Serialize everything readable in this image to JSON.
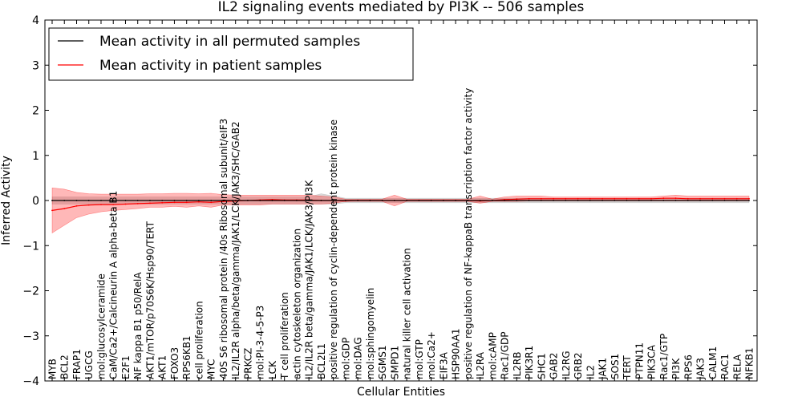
{
  "chart_data": {
    "type": "line",
    "title": "IL2 signaling events mediated by PI3K -- 506 samples",
    "xlabel": "Cellular Entities",
    "ylabel": "Inferred Activity",
    "ylim": [
      -4,
      4
    ],
    "yticks": [
      -4,
      -3,
      -2,
      -1,
      0,
      1,
      2,
      3,
      4
    ],
    "ytick_labels": [
      "−4",
      "−3",
      "−2",
      "−1",
      "0",
      "1",
      "2",
      "3",
      "4"
    ],
    "grid": false,
    "legend": {
      "position": "top-left",
      "entries": [
        {
          "label": "Mean activity in all permuted samples",
          "color": "#000000"
        },
        {
          "label": "Mean activity in patient samples",
          "color": "#ff0000"
        }
      ]
    },
    "categories": [
      "MYB",
      "BCL2",
      "FRAP1",
      "UGCG",
      "mol:glucosylceramide",
      "CaM/Ca2+/Calcineurin A alpha-beta B1",
      "E2F1",
      "NF kappa B1 p50/RelA",
      "AKT1/mTOR/p70S6K/Hsp90/TERT",
      "AKT1",
      "FOXO3",
      "RPS6KB1",
      "cell proliferation",
      "MYC",
      "40S S6 ribosomal protein /40s Ribosomal subunit/eIF3",
      "IL2/IL2R alpha/beta/gamma/JAK1/LCK/JAK3/SHC/GAB2",
      "PRKCZ",
      "mol:PI-3-4-5-P3",
      "LCK",
      "T cell proliferation",
      "actin cytoskeleton organization",
      "IL2/IL2R beta/gamma/JAK1/LCK/JAK3/PI3K",
      "BCL2L1",
      "positive regulation of cyclin-dependent protein kinase",
      "mol:GDP",
      "mol:DAG",
      "mol:sphingomyelin",
      "SGMS1",
      "SMPD1",
      "natural killer cell activation",
      "mol:GTP",
      "mol:Ca2+",
      "EIF3A",
      "HSP90AA1",
      "positive regulation of NF-kappaB transcription factor activity",
      "IL2RA",
      "mol:cAMP",
      "Rac1/GDP",
      "IL2RB",
      "PIK3R1",
      "SHC1",
      "GAB2",
      "IL2RG",
      "GRB2",
      "IL2",
      "JAK1",
      "SOS1",
      "TERT",
      "PTPN11",
      "PIK3CA",
      "Rac1/GTP",
      "PI3K",
      "RPS6",
      "JAK3",
      "CALM1",
      "RAC1",
      "RELA",
      "NFKB1"
    ],
    "series": [
      {
        "name": "Mean activity in all permuted samples",
        "color": "#000000",
        "values": [
          0,
          0,
          0,
          0,
          0,
          0,
          0,
          0,
          0,
          0,
          0,
          0,
          0,
          0,
          0,
          0,
          0,
          0,
          0,
          0,
          0,
          0,
          0,
          0,
          0,
          0,
          0,
          0,
          0,
          0,
          0,
          0,
          0,
          0,
          0,
          0,
          0,
          0,
          0,
          0,
          0,
          0,
          0,
          0,
          0,
          0,
          0,
          0,
          0,
          0,
          0,
          0,
          0,
          0,
          0,
          0,
          0,
          0
        ],
        "lower": [
          -0.08,
          -0.08,
          -0.08,
          -0.08,
          -0.08,
          -0.08,
          -0.08,
          -0.08,
          -0.08,
          -0.08,
          -0.08,
          -0.08,
          -0.08,
          -0.08,
          -0.08,
          -0.08,
          -0.08,
          -0.08,
          -0.08,
          -0.08,
          -0.08,
          -0.08,
          -0.08,
          -0.08,
          -0.05,
          -0.05,
          -0.05,
          -0.05,
          -0.05,
          -0.05,
          -0.05,
          -0.05,
          -0.05,
          -0.05,
          -0.05,
          -0.05,
          -0.05,
          -0.05,
          -0.05,
          -0.05,
          -0.05,
          -0.05,
          -0.05,
          -0.05,
          -0.05,
          -0.05,
          -0.05,
          -0.05,
          -0.05,
          -0.05,
          -0.05,
          -0.05,
          -0.05,
          -0.05,
          -0.05,
          -0.05,
          -0.05,
          -0.05
        ],
        "upper": [
          0.08,
          0.08,
          0.08,
          0.08,
          0.08,
          0.08,
          0.08,
          0.08,
          0.08,
          0.08,
          0.08,
          0.08,
          0.08,
          0.08,
          0.08,
          0.08,
          0.08,
          0.08,
          0.08,
          0.08,
          0.08,
          0.08,
          0.15,
          0.1,
          0.05,
          0.05,
          0.05,
          0.05,
          0.05,
          0.05,
          0.05,
          0.05,
          0.05,
          0.05,
          0.05,
          0.05,
          0.05,
          0.05,
          0.05,
          0.05,
          0.05,
          0.05,
          0.05,
          0.05,
          0.05,
          0.05,
          0.05,
          0.05,
          0.05,
          0.05,
          0.05,
          0.05,
          0.05,
          0.05,
          0.05,
          0.05,
          0.05,
          0.05
        ]
      },
      {
        "name": "Mean activity in patient samples",
        "color": "#ff0000",
        "values": [
          -0.22,
          -0.18,
          -0.12,
          -0.1,
          -0.09,
          -0.09,
          -0.08,
          -0.07,
          -0.06,
          -0.05,
          -0.04,
          -0.04,
          -0.03,
          -0.04,
          -0.02,
          -0.01,
          0,
          0.01,
          0.02,
          0.01,
          0.01,
          0.01,
          0,
          0,
          -0.01,
          0,
          0,
          0,
          0,
          0,
          0,
          0,
          0,
          0,
          0,
          -0.01,
          0,
          0.02,
          0.03,
          0.04,
          0.04,
          0.04,
          0.04,
          0.04,
          0.04,
          0.04,
          0.04,
          0.04,
          0.04,
          0.04,
          0.05,
          0.05,
          0.04,
          0.04,
          0.04,
          0.04,
          0.04,
          0.04
        ],
        "lower": [
          -0.72,
          -0.55,
          -0.38,
          -0.3,
          -0.25,
          -0.22,
          -0.2,
          -0.18,
          -0.15,
          -0.15,
          -0.13,
          -0.15,
          -0.12,
          -0.15,
          -0.1,
          -0.1,
          -0.1,
          -0.1,
          -0.08,
          -0.08,
          -0.08,
          -0.08,
          -0.08,
          -0.06,
          -0.02,
          -0.02,
          -0.02,
          -0.02,
          -0.12,
          -0.02,
          -0.02,
          -0.02,
          -0.02,
          -0.02,
          -0.02,
          -0.06,
          -0.02,
          -0.02,
          -0.02,
          -0.01,
          -0.01,
          -0.01,
          -0.01,
          -0.01,
          -0.01,
          -0.01,
          -0.01,
          -0.01,
          -0.01,
          -0.01,
          -0.01,
          -0.01,
          -0.01,
          -0.01,
          -0.01,
          -0.01,
          -0.01,
          -0.01
        ],
        "upper": [
          0.28,
          0.25,
          0.18,
          0.15,
          0.14,
          0.14,
          0.14,
          0.14,
          0.15,
          0.15,
          0.16,
          0.16,
          0.15,
          0.16,
          0.13,
          0.12,
          0.12,
          0.12,
          0.12,
          0.12,
          0.12,
          0.12,
          0.1,
          0.08,
          0.03,
          0.03,
          0.03,
          0.03,
          0.12,
          0.03,
          0.03,
          0.03,
          0.03,
          0.03,
          0.03,
          0.1,
          0.03,
          0.08,
          0.1,
          0.1,
          0.1,
          0.08,
          0.08,
          0.08,
          0.08,
          0.08,
          0.08,
          0.08,
          0.08,
          0.08,
          0.1,
          0.12,
          0.1,
          0.1,
          0.1,
          0.1,
          0.1,
          0.1
        ]
      }
    ]
  }
}
